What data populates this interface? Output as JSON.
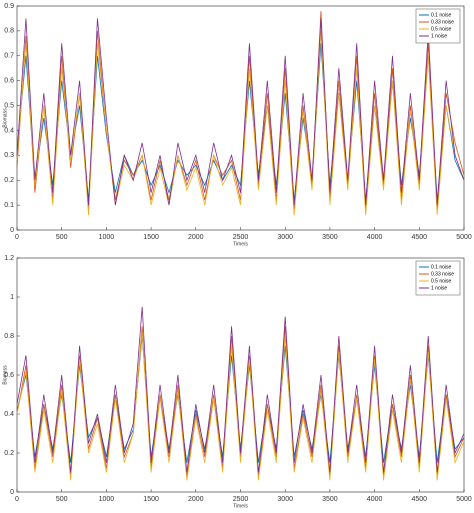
{
  "chart_data": [
    {
      "type": "line",
      "xlabel": "Time/s",
      "ylabel": "Biomass",
      "x": [
        0,
        100,
        200,
        300,
        400,
        500,
        600,
        700,
        800,
        900,
        1000,
        1100,
        1200,
        1300,
        1400,
        1500,
        1600,
        1700,
        1800,
        1900,
        2000,
        2100,
        2200,
        2300,
        2400,
        2500,
        2600,
        2700,
        2800,
        2900,
        3000,
        3100,
        3200,
        3300,
        3400,
        3500,
        3600,
        3700,
        3800,
        3900,
        4000,
        4100,
        4200,
        4300,
        4400,
        4500,
        4600,
        4700,
        4800,
        4900,
        5000
      ],
      "xlim": [
        0,
        5000
      ],
      "xticks": [
        0,
        500,
        1000,
        1500,
        2000,
        2500,
        3000,
        3500,
        4000,
        4500,
        5000
      ],
      "ylim": [
        0,
        0.9
      ],
      "yticks": [
        0,
        0.1,
        0.2,
        0.3,
        0.4,
        0.5,
        0.6,
        0.7,
        0.8,
        0.9
      ],
      "legend": "upper right",
      "series": [
        {
          "name": "0.1 noise",
          "color": "#0072BD",
          "values": [
            0.32,
            0.7,
            0.2,
            0.45,
            0.18,
            0.6,
            0.3,
            0.5,
            0.12,
            0.7,
            0.38,
            0.15,
            0.3,
            0.22,
            0.28,
            0.18,
            0.26,
            0.15,
            0.28,
            0.22,
            0.26,
            0.18,
            0.28,
            0.2,
            0.26,
            0.18,
            0.6,
            0.22,
            0.5,
            0.18,
            0.55,
            0.12,
            0.45,
            0.2,
            0.75,
            0.18,
            0.55,
            0.2,
            0.6,
            0.12,
            0.5,
            0.2,
            0.6,
            0.18,
            0.45,
            0.22,
            0.7,
            0.12,
            0.5,
            0.28,
            0.2
          ]
        },
        {
          "name": "0.33 noise",
          "color": "#D95319",
          "values": [
            0.25,
            0.78,
            0.15,
            0.5,
            0.12,
            0.7,
            0.25,
            0.55,
            0.08,
            0.8,
            0.4,
            0.12,
            0.28,
            0.22,
            0.3,
            0.12,
            0.28,
            0.12,
            0.3,
            0.18,
            0.28,
            0.12,
            0.3,
            0.22,
            0.28,
            0.12,
            0.7,
            0.18,
            0.55,
            0.12,
            0.65,
            0.08,
            0.5,
            0.18,
            0.88,
            0.12,
            0.6,
            0.18,
            0.7,
            0.08,
            0.55,
            0.18,
            0.65,
            0.12,
            0.5,
            0.18,
            0.75,
            0.08,
            0.55,
            0.35,
            0.22
          ]
        },
        {
          "name": "0.5 noise",
          "color": "#EDB120",
          "values": [
            0.28,
            0.75,
            0.18,
            0.5,
            0.1,
            0.65,
            0.28,
            0.55,
            0.06,
            0.75,
            0.4,
            0.1,
            0.26,
            0.2,
            0.3,
            0.1,
            0.25,
            0.1,
            0.3,
            0.16,
            0.25,
            0.1,
            0.3,
            0.18,
            0.25,
            0.1,
            0.65,
            0.16,
            0.5,
            0.1,
            0.6,
            0.06,
            0.48,
            0.16,
            0.8,
            0.1,
            0.55,
            0.16,
            0.65,
            0.06,
            0.5,
            0.16,
            0.6,
            0.1,
            0.48,
            0.16,
            0.7,
            0.06,
            0.5,
            0.3,
            0.2
          ]
        },
        {
          "name": "1 noise",
          "color": "#7E2F8E",
          "values": [
            0.3,
            0.85,
            0.2,
            0.55,
            0.15,
            0.75,
            0.3,
            0.6,
            0.1,
            0.85,
            0.45,
            0.1,
            0.3,
            0.2,
            0.35,
            0.15,
            0.3,
            0.1,
            0.35,
            0.2,
            0.3,
            0.15,
            0.35,
            0.2,
            0.3,
            0.15,
            0.75,
            0.2,
            0.6,
            0.15,
            0.7,
            0.1,
            0.55,
            0.2,
            0.85,
            0.15,
            0.65,
            0.2,
            0.75,
            0.1,
            0.6,
            0.2,
            0.7,
            0.15,
            0.55,
            0.2,
            0.8,
            0.1,
            0.6,
            0.3,
            0.2
          ]
        }
      ]
    },
    {
      "type": "line",
      "xlabel": "Time/s",
      "ylabel": "Biomass",
      "x": [
        0,
        100,
        200,
        300,
        400,
        500,
        600,
        700,
        800,
        900,
        1000,
        1100,
        1200,
        1300,
        1400,
        1500,
        1600,
        1700,
        1800,
        1900,
        2000,
        2100,
        2200,
        2300,
        2400,
        2500,
        2600,
        2700,
        2800,
        2900,
        3000,
        3100,
        3200,
        3300,
        3400,
        3500,
        3600,
        3700,
        3800,
        3900,
        4000,
        4100,
        4200,
        4300,
        4400,
        4500,
        4600,
        4700,
        4800,
        4900,
        5000
      ],
      "xlim": [
        0,
        5000
      ],
      "xticks": [
        0,
        500,
        1000,
        1500,
        2000,
        2500,
        3000,
        3500,
        4000,
        4500,
        5000
      ],
      "ylim": [
        0,
        1.2
      ],
      "yticks": [
        0,
        0.2,
        0.4,
        0.6,
        0.8,
        1,
        1.2
      ],
      "legend": "upper right",
      "series": [
        {
          "name": "0.1 noise",
          "color": "#0072BD",
          "values": [
            0.42,
            0.6,
            0.18,
            0.45,
            0.22,
            0.5,
            0.15,
            0.65,
            0.28,
            0.38,
            0.18,
            0.5,
            0.22,
            0.32,
            0.8,
            0.18,
            0.48,
            0.22,
            0.5,
            0.15,
            0.42,
            0.22,
            0.48,
            0.18,
            0.7,
            0.22,
            0.65,
            0.15,
            0.45,
            0.22,
            0.75,
            0.18,
            0.42,
            0.22,
            0.5,
            0.15,
            0.7,
            0.22,
            0.48,
            0.18,
            0.65,
            0.15,
            0.45,
            0.22,
            0.55,
            0.18,
            0.7,
            0.15,
            0.5,
            0.22,
            0.28
          ]
        },
        {
          "name": "0.33 noise",
          "color": "#D95319",
          "values": [
            0.4,
            0.65,
            0.12,
            0.45,
            0.18,
            0.55,
            0.08,
            0.7,
            0.22,
            0.38,
            0.12,
            0.5,
            0.18,
            0.3,
            0.85,
            0.12,
            0.5,
            0.18,
            0.55,
            0.08,
            0.4,
            0.18,
            0.5,
            0.12,
            0.8,
            0.18,
            0.7,
            0.08,
            0.45,
            0.18,
            0.85,
            0.12,
            0.4,
            0.18,
            0.55,
            0.08,
            0.75,
            0.18,
            0.5,
            0.12,
            0.7,
            0.08,
            0.45,
            0.18,
            0.6,
            0.12,
            0.75,
            0.08,
            0.5,
            0.18,
            0.28
          ]
        },
        {
          "name": "0.5 noise",
          "color": "#EDB120",
          "values": [
            0.4,
            0.62,
            0.1,
            0.42,
            0.15,
            0.52,
            0.06,
            0.68,
            0.2,
            0.35,
            0.1,
            0.48,
            0.15,
            0.3,
            0.82,
            0.1,
            0.48,
            0.15,
            0.52,
            0.06,
            0.38,
            0.15,
            0.48,
            0.1,
            0.75,
            0.15,
            0.68,
            0.06,
            0.42,
            0.15,
            0.8,
            0.1,
            0.38,
            0.15,
            0.52,
            0.06,
            0.72,
            0.15,
            0.48,
            0.1,
            0.68,
            0.06,
            0.42,
            0.15,
            0.58,
            0.1,
            0.72,
            0.06,
            0.48,
            0.15,
            0.26
          ]
        },
        {
          "name": "1 noise",
          "color": "#7E2F8E",
          "values": [
            0.45,
            0.7,
            0.15,
            0.5,
            0.2,
            0.6,
            0.1,
            0.75,
            0.25,
            0.4,
            0.15,
            0.55,
            0.2,
            0.35,
            0.95,
            0.15,
            0.55,
            0.2,
            0.6,
            0.1,
            0.45,
            0.2,
            0.55,
            0.15,
            0.85,
            0.2,
            0.75,
            0.1,
            0.5,
            0.2,
            0.9,
            0.15,
            0.45,
            0.2,
            0.6,
            0.1,
            0.8,
            0.2,
            0.55,
            0.15,
            0.75,
            0.1,
            0.5,
            0.2,
            0.65,
            0.15,
            0.8,
            0.1,
            0.55,
            0.2,
            0.3
          ]
        }
      ]
    }
  ]
}
